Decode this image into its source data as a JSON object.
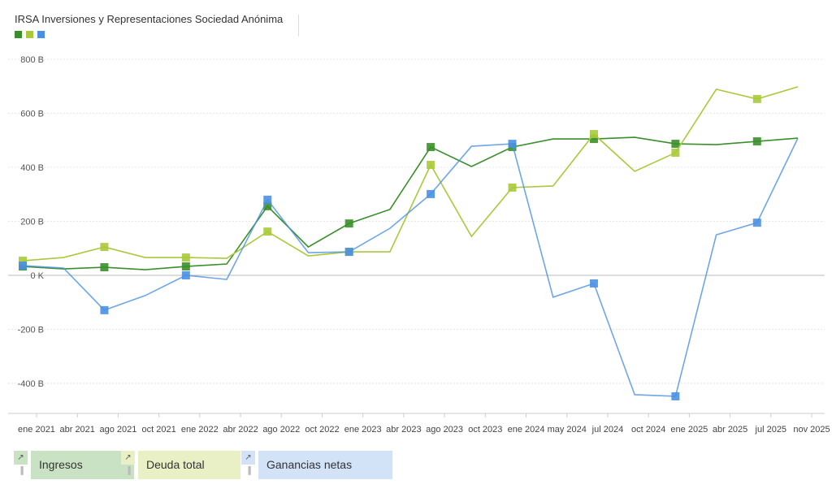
{
  "chart_data": {
    "type": "line",
    "title": "IRSA Inversiones y Representaciones Sociedad Anónima",
    "categories": [
      "ene 2021",
      "abr 2021",
      "ago 2021",
      "oct 2021",
      "ene 2022",
      "abr 2022",
      "ago 2022",
      "oct 2022",
      "ene 2023",
      "abr 2023",
      "ago 2023",
      "oct 2023",
      "ene 2024",
      "may 2024",
      "jul 2024",
      "oct 2024",
      "ene 2025",
      "abr 2025",
      "jul 2025",
      "nov 2025"
    ],
    "ylim": [
      -500,
      850
    ],
    "yticks": [
      800,
      600,
      400,
      200,
      0,
      -200,
      -400
    ],
    "ytick_labels": [
      "800 B",
      "600 B",
      "400 B",
      "200 B",
      "0 K",
      "-200 B",
      "-400 B"
    ],
    "grid": true,
    "legend_position": "bottom-left",
    "series": [
      {
        "name": "Ingresos",
        "color": "#3a8f2a",
        "legend_bg": "#c9e2c3",
        "values": [
          33,
          24,
          30,
          21,
          33,
          42,
          256,
          105,
          192,
          244,
          475,
          403,
          475,
          505,
          505,
          511,
          487,
          484,
          496,
          508
        ]
      },
      {
        "name": "Deuda total",
        "color": "#a9c93a",
        "legend_bg": "#e9f0c6",
        "values": [
          54,
          66,
          105,
          66,
          66,
          63,
          162,
          72,
          87,
          87,
          409,
          144,
          325,
          331,
          523,
          385,
          454,
          689,
          653,
          698
        ]
      },
      {
        "name": "Ganancias netas",
        "color": "#4a90e2",
        "legend_bg": "#d2e2f7",
        "values": [
          36,
          27,
          -129,
          -75,
          0,
          -15,
          280,
          84,
          87,
          174,
          301,
          478,
          487,
          -81,
          -30,
          -442,
          -448,
          150,
          195,
          508
        ]
      }
    ]
  }
}
